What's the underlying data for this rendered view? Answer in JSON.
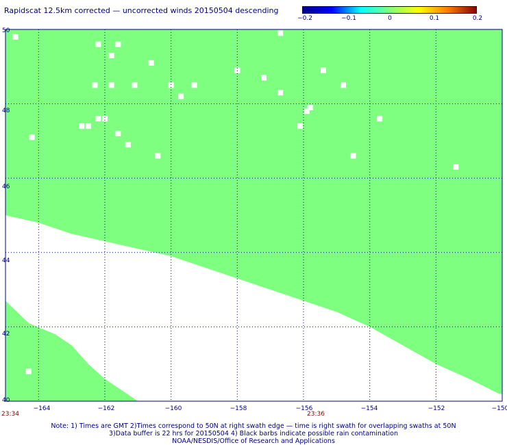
{
  "title": "Rapidscat 12.5km corrected — uncorrected winds 20150504 descending",
  "colorbar": {
    "labels": [
      "−0.2",
      "−0.1",
      "0",
      "0.1",
      "0.2"
    ],
    "colors": [
      "#00008b",
      "#0000ff",
      "#00ffff",
      "#7fff7f",
      "#ffff00",
      "#ff7f00",
      "#8b0000"
    ]
  },
  "fill_color": "#7fff7f",
  "lat_labels": [
    "50",
    "48",
    "46",
    "44",
    "42",
    "40"
  ],
  "lon_labels": [
    "−164",
    "−162",
    "−160",
    "−158",
    "−156",
    "−154",
    "−152",
    "−150"
  ],
  "time_labels": [
    "23:34",
    "23:36"
  ],
  "notes": [
    "Note: 1) Times are GMT 2)Times correspond to 50N at right swath edge — time is right swath for overlapping swaths at 50N",
    "3)Data buffer is 22 hrs for 20150504 4) Black barbs indicate possible rain contamination",
    "NOAA/NESDIS/Office of Research and Applications"
  ],
  "map": {
    "lon_range": [
      -165,
      -150
    ],
    "lat_range": [
      40,
      50
    ],
    "swath_edge": [
      [
        -165,
        45.0
      ],
      [
        -164,
        44.8
      ],
      [
        -163,
        44.5
      ],
      [
        -162,
        44.3
      ],
      [
        -161,
        44.1
      ],
      [
        -160,
        43.9
      ],
      [
        -159,
        43.6
      ],
      [
        -158,
        43.3
      ],
      [
        -157,
        43.0
      ],
      [
        -156,
        42.7
      ],
      [
        -155,
        42.4
      ],
      [
        -154,
        42.0
      ],
      [
        -153,
        41.5
      ],
      [
        -152,
        41.0
      ],
      [
        -151,
        40.6
      ],
      [
        -150.1,
        40.2
      ]
    ],
    "lower_swath_edge": [
      [
        -165,
        42.7
      ],
      [
        -164.3,
        42.1
      ],
      [
        -163.5,
        41.8
      ],
      [
        -163,
        41.5
      ],
      [
        -162.5,
        41.0
      ],
      [
        -162,
        40.6
      ],
      [
        -161.5,
        40.3
      ],
      [
        -161,
        40.0
      ]
    ],
    "gaps": [
      [
        -164.7,
        49.8
      ],
      [
        -162.2,
        49.6
      ],
      [
        -161.6,
        49.6
      ],
      [
        -161.8,
        49.3
      ],
      [
        -160.6,
        49.1
      ],
      [
        -158.0,
        48.9
      ],
      [
        -158.0,
        48.9
      ],
      [
        -155.4,
        48.9
      ],
      [
        -157.2,
        48.7
      ],
      [
        -154.8,
        48.5
      ],
      [
        -162.3,
        48.5
      ],
      [
        -161.8,
        48.5
      ],
      [
        -161.1,
        48.5
      ],
      [
        -160.0,
        48.5
      ],
      [
        -159.3,
        48.5
      ],
      [
        -159.7,
        48.2
      ],
      [
        -156.7,
        48.3
      ],
      [
        -155.8,
        47.9
      ],
      [
        -155.9,
        47.8
      ],
      [
        -162.2,
        47.6
      ],
      [
        -162.0,
        47.6
      ],
      [
        -162.5,
        47.4
      ],
      [
        -162.7,
        47.4
      ],
      [
        -156.1,
        47.4
      ],
      [
        -153.7,
        47.6
      ],
      [
        -161.6,
        47.2
      ],
      [
        -164.2,
        47.1
      ],
      [
        -161.3,
        46.9
      ],
      [
        -160.4,
        46.6
      ],
      [
        -154.5,
        46.6
      ],
      [
        -151.4,
        46.3
      ],
      [
        -164.3,
        40.8
      ],
      [
        -156.7,
        49.9
      ]
    ]
  }
}
